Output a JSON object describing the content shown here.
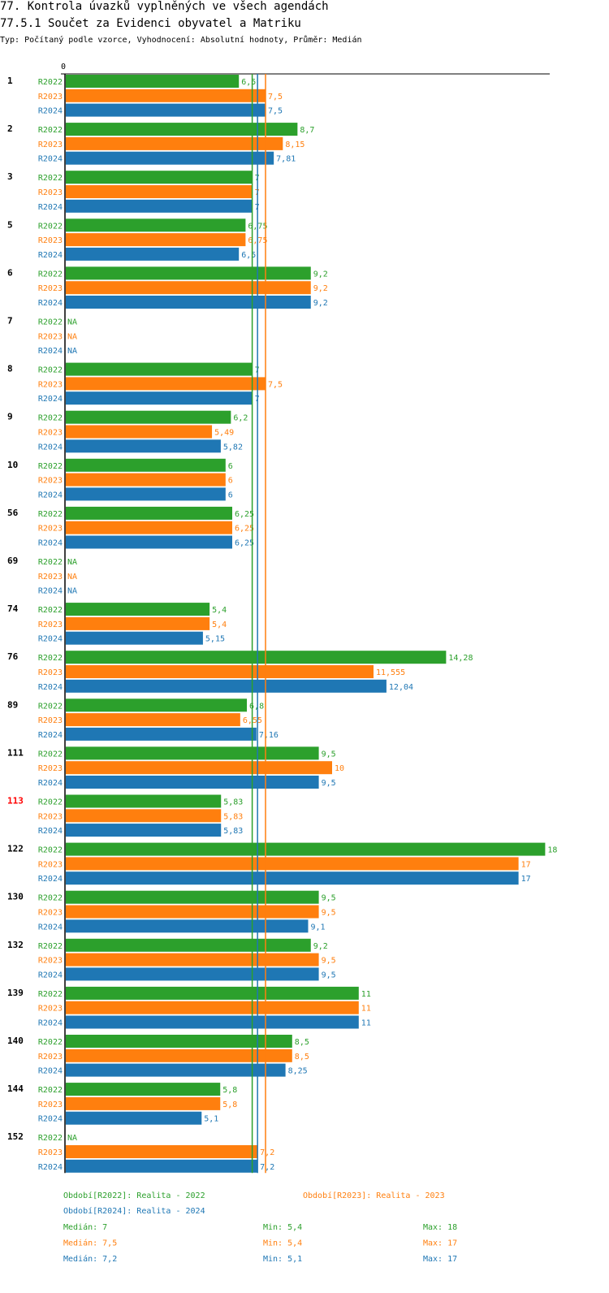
{
  "header": {
    "title": "77. Kontrola úvazků vyplněných ve všech agendách",
    "subtitle": "77.5.1 Součet za Evidenci obyvatel a Matriku",
    "type_line": "Typ: Počítaný podle vzorce, Vyhodnocení: Absolutní hodnoty, Průměr: Medián"
  },
  "colors": {
    "R2022": "#2ca02c",
    "R2023": "#ff7f0e",
    "R2024": "#1f77b4",
    "highlight": "#ff0000"
  },
  "chart_data": {
    "type": "bar",
    "orientation": "horizontal",
    "axis_zero_label": "0",
    "na_label": "NA",
    "highlighted_category": "113",
    "categories": [
      "1",
      "2",
      "3",
      "5",
      "6",
      "7",
      "8",
      "9",
      "10",
      "56",
      "69",
      "74",
      "76",
      "89",
      "111",
      "113",
      "122",
      "130",
      "132",
      "139",
      "140",
      "144",
      "152"
    ],
    "series": [
      {
        "name": "R2022",
        "values": [
          6.5,
          8.7,
          7,
          6.75,
          9.2,
          null,
          7,
          6.2,
          6,
          6.25,
          null,
          5.4,
          14.28,
          6.8,
          9.5,
          5.83,
          18,
          9.5,
          9.2,
          11,
          8.5,
          5.8,
          null
        ],
        "labels": [
          "6,5",
          "8,7",
          "7",
          "6,75",
          "9,2",
          "NA",
          "7",
          "6,2",
          "6",
          "6,25",
          "NA",
          "5,4",
          "14,28",
          "6,8",
          "9,5",
          "5,83",
          "18",
          "9,5",
          "9,2",
          "11",
          "8,5",
          "5,8",
          "NA"
        ]
      },
      {
        "name": "R2023",
        "values": [
          7.5,
          8.15,
          7,
          6.75,
          9.2,
          null,
          7.5,
          5.49,
          6,
          6.25,
          null,
          5.4,
          11.555,
          6.55,
          10,
          5.83,
          17,
          9.5,
          9.5,
          11,
          8.5,
          5.8,
          7.2
        ],
        "labels": [
          "7,5",
          "8,15",
          "7",
          "6,75",
          "9,2",
          "NA",
          "7,5",
          "5,49",
          "6",
          "6,25",
          "NA",
          "5,4",
          "11,555",
          "6,55",
          "10",
          "5,83",
          "17",
          "9,5",
          "9,5",
          "11",
          "8,5",
          "5,8",
          "7,2"
        ]
      },
      {
        "name": "R2024",
        "values": [
          7.5,
          7.81,
          7,
          6.5,
          9.2,
          null,
          7,
          5.82,
          6,
          6.25,
          null,
          5.15,
          12.04,
          7.16,
          9.5,
          5.83,
          17,
          9.1,
          9.5,
          11,
          8.25,
          5.1,
          7.2
        ],
        "labels": [
          "7,5",
          "7,81",
          "7",
          "6,5",
          "9,2",
          "NA",
          "7",
          "5,82",
          "6",
          "6,25",
          "NA",
          "5,15",
          "12,04",
          "7,16",
          "9,5",
          "5,83",
          "17",
          "9,1",
          "9,5",
          "11",
          "8,25",
          "5,1",
          "7,2"
        ]
      }
    ],
    "xlim": [
      0,
      18.3
    ],
    "reference_lines": [
      {
        "series": "R2022",
        "median": 7
      },
      {
        "series": "R2023",
        "median": 7.5
      },
      {
        "series": "R2024",
        "median": 7.2
      }
    ],
    "legend": [
      {
        "series": "R2022",
        "text": "Období[R2022]: Realita - 2022"
      },
      {
        "series": "R2023",
        "text": "Období[R2023]: Realita - 2023"
      },
      {
        "series": "R2024",
        "text": "Období[R2024]: Realita - 2024"
      }
    ],
    "stats": [
      {
        "series": "R2022",
        "median": "Medián: 7",
        "min": "Min: 5,4",
        "max": "Max: 18"
      },
      {
        "series": "R2023",
        "median": "Medián: 7,5",
        "min": "Min: 5,4",
        "max": "Max: 17"
      },
      {
        "series": "R2024",
        "median": "Medián: 7,2",
        "min": "Min: 5,1",
        "max": "Max: 17"
      }
    ]
  }
}
